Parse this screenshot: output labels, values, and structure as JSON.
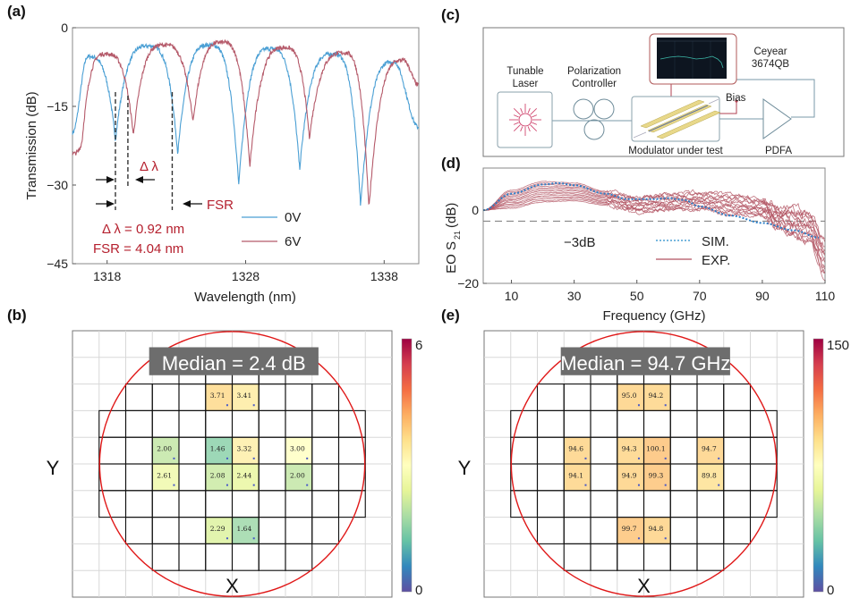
{
  "panels": {
    "a": "(a)",
    "b": "(b)",
    "c": "(c)",
    "d": "(d)",
    "e": "(e)"
  },
  "chart_data": [
    {
      "id": "a",
      "type": "line",
      "title": "",
      "xlabel": "Wavelength (nm)",
      "ylabel": "Transmission (dB)",
      "xlim": [
        1315.5,
        1340.5
      ],
      "ylim": [
        -45,
        0
      ],
      "xticks": [
        1318,
        1328,
        1338
      ],
      "yticks": [
        0,
        -15,
        -30,
        -45
      ],
      "ytick_labels": [
        "0",
        "−15",
        "−30",
        "−45"
      ],
      "legend_position": "lower-right",
      "series": [
        {
          "name": "0V",
          "color": "#4a9fd4",
          "dips": [
            [
              1318.6,
              -21.5
            ],
            [
              1323.1,
              -24
            ],
            [
              1327.5,
              -30
            ],
            [
              1331.9,
              -27
            ],
            [
              1336.3,
              -34
            ]
          ],
          "peaks": [
            [
              1315.5,
              -20
            ],
            [
              1316.6,
              -5.5
            ],
            [
              1321.0,
              -3.5
            ],
            [
              1325.4,
              -3.3
            ],
            [
              1329.8,
              -4.0
            ],
            [
              1334.3,
              -5.0
            ],
            [
              1338.7,
              -6.5
            ],
            [
              1340.5,
              -19
            ]
          ]
        },
        {
          "name": "6V",
          "color": "#b55a6a",
          "dips": [
            [
              1316.2,
              -21.5
            ],
            [
              1319.9,
              -20.5
            ],
            [
              1324.2,
              -18
            ],
            [
              1328.3,
              -26.5
            ],
            [
              1332.6,
              -21
            ],
            [
              1336.9,
              -34.5
            ]
          ],
          "peaks": [
            [
              1315.5,
              -24
            ],
            [
              1317.9,
              -5.0
            ],
            [
              1322.1,
              -3.3
            ],
            [
              1326.3,
              -2.8
            ],
            [
              1330.8,
              -3.8
            ],
            [
              1335.1,
              -4.8
            ],
            [
              1339.4,
              -6.2
            ],
            [
              1340.5,
              -11
            ]
          ]
        }
      ],
      "annotations": {
        "delta_lambda_label": "Δ λ",
        "fsr_label": "FSR",
        "delta_lambda_value": "Δ λ = 0.92 nm",
        "fsr_value": "FSR = 4.04 nm",
        "markers_nm": [
          1318.6,
          1319.5,
          1322.7
        ]
      }
    },
    {
      "id": "d",
      "type": "line",
      "xlabel": "Frequency (GHz)",
      "ylabel": "EO S21 (dB)",
      "ylabel_main": "EO S",
      "ylabel_sub": "21",
      "ylabel_unit": "(dB)",
      "xlim": [
        1,
        110
      ],
      "ylim": [
        -20,
        11.5
      ],
      "xticks": [
        10,
        30,
        50,
        70,
        90,
        110
      ],
      "yticks": [
        0,
        -20
      ],
      "ytick_labels": [
        "0",
        "−20"
      ],
      "reference_line": {
        "value": -3,
        "label": "−3dB"
      },
      "legend_position": "center",
      "series": [
        {
          "name": "SIM.",
          "color": "#2a7fc9",
          "style": "dotted",
          "x": [
            1,
            10,
            20,
            25,
            30,
            40,
            47,
            55,
            60,
            65,
            70,
            80,
            90,
            100,
            108
          ],
          "y": [
            0,
            4.5,
            7.0,
            7.4,
            6.8,
            4.5,
            3.0,
            3.0,
            3.3,
            2.8,
            1.0,
            -1.5,
            -3.5,
            -5.5,
            -7.5
          ]
        },
        {
          "name": "EXP.",
          "color": "#b0505f",
          "style": "solid",
          "count": 14,
          "envelope_x": [
            1,
            10,
            20,
            30,
            40,
            50,
            60,
            70,
            80,
            90,
            95,
            100,
            105,
            110
          ],
          "envelope_upper": [
            0,
            6.5,
            9.0,
            8.5,
            6.0,
            4.5,
            5.5,
            6.0,
            5.5,
            4.0,
            2.0,
            2.5,
            1.0,
            -6
          ],
          "envelope_lower": [
            0,
            -0.5,
            1.0,
            1.5,
            0.5,
            -1.5,
            -1.0,
            -1.0,
            -2.5,
            -2.5,
            -6.0,
            -9.0,
            -11.0,
            -20
          ]
        }
      ]
    },
    {
      "id": "b",
      "type": "heatmap",
      "title": "Median = 2.4 dB",
      "xlabel": "X",
      "ylabel": "Y",
      "colorbar": {
        "min": 0,
        "max": 6,
        "colormap": "Spectral_r"
      },
      "cells": [
        {
          "row": 2,
          "col": 5,
          "value": 3.71,
          "label": "3.71"
        },
        {
          "row": 2,
          "col": 6,
          "value": 3.41,
          "label": "3.41"
        },
        {
          "row": 4,
          "col": 3,
          "value": 2.0,
          "label": "2.00"
        },
        {
          "row": 4,
          "col": 5,
          "value": 1.46,
          "label": "1.46"
        },
        {
          "row": 4,
          "col": 6,
          "value": 3.32,
          "label": "3.32"
        },
        {
          "row": 4,
          "col": 8,
          "value": 3.0,
          "label": "3.00"
        },
        {
          "row": 5,
          "col": 3,
          "value": 2.61,
          "label": "2.61"
        },
        {
          "row": 5,
          "col": 5,
          "value": 2.08,
          "label": "2.08"
        },
        {
          "row": 5,
          "col": 6,
          "value": 2.44,
          "label": "2.44"
        },
        {
          "row": 5,
          "col": 8,
          "value": 2.0,
          "label": "2.00"
        },
        {
          "row": 7,
          "col": 5,
          "value": 2.29,
          "label": "2.29"
        },
        {
          "row": 7,
          "col": 6,
          "value": 1.64,
          "label": "1.64"
        }
      ]
    },
    {
      "id": "e",
      "type": "heatmap",
      "title": "Median = 94.7 GHz",
      "xlabel": "X",
      "ylabel": "Y",
      "colorbar": {
        "min": 0,
        "max": 150,
        "colormap": "Spectral_r"
      },
      "cells": [
        {
          "row": 2,
          "col": 5,
          "value": 95.0,
          "label": "95.0"
        },
        {
          "row": 2,
          "col": 6,
          "value": 94.2,
          "label": "94.2"
        },
        {
          "row": 4,
          "col": 3,
          "value": 94.6,
          "label": "94.6"
        },
        {
          "row": 4,
          "col": 5,
          "value": 94.3,
          "label": "94.3"
        },
        {
          "row": 4,
          "col": 6,
          "value": 100.1,
          "label": "100.1"
        },
        {
          "row": 4,
          "col": 8,
          "value": 94.7,
          "label": "94.7"
        },
        {
          "row": 5,
          "col": 3,
          "value": 94.1,
          "label": "94.1"
        },
        {
          "row": 5,
          "col": 5,
          "value": 94.9,
          "label": "94.9"
        },
        {
          "row": 5,
          "col": 6,
          "value": 99.3,
          "label": "99.3"
        },
        {
          "row": 5,
          "col": 8,
          "value": 89.8,
          "label": "89.8"
        },
        {
          "row": 7,
          "col": 5,
          "value": 99.7,
          "label": "99.7"
        },
        {
          "row": 7,
          "col": 6,
          "value": 94.8,
          "label": "94.8"
        }
      ]
    }
  ],
  "wafer_layout": {
    "rows": [
      {
        "row": 1,
        "cols": [
          4,
          7
        ]
      },
      {
        "row": 2,
        "cols": [
          2,
          9
        ]
      },
      {
        "row": 3,
        "cols": [
          1,
          10
        ]
      },
      {
        "row": 4,
        "cols": [
          1,
          10
        ]
      },
      {
        "row": 5,
        "cols": [
          1,
          10
        ]
      },
      {
        "row": 6,
        "cols": [
          1,
          10
        ]
      },
      {
        "row": 7,
        "cols": [
          2,
          9
        ]
      },
      {
        "row": 8,
        "cols": [
          3,
          8
        ]
      }
    ]
  },
  "setup": {
    "tunable_laser": "Tunable\nLaser",
    "tunable_laser_l1": "Tunable",
    "tunable_laser_l2": "Laser",
    "pc_l1": "Polarization",
    "pc_l2": "Controller",
    "vna_l1": "Ceyear",
    "vna_l2": "3674QB",
    "bias": "Bias",
    "modulator": "Modulator under test",
    "pdfa": "PDFA"
  }
}
